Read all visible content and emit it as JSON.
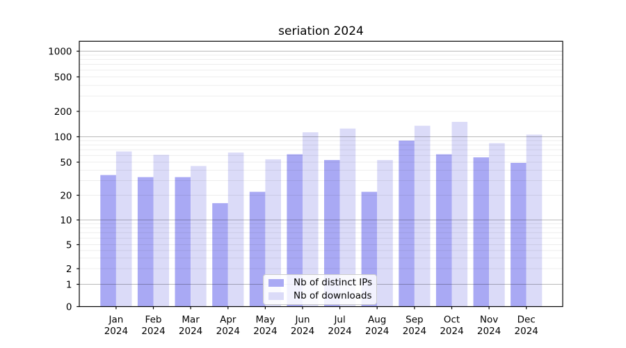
{
  "chart_data": {
    "type": "bar",
    "title": "seriation 2024",
    "categories": [
      "Jan",
      "Feb",
      "Mar",
      "Apr",
      "May",
      "Jun",
      "Jul",
      "Aug",
      "Sep",
      "Oct",
      "Nov",
      "Dec"
    ],
    "category_year": "2024",
    "series": [
      {
        "name": "Nb of distinct IPs",
        "color": "#a9a9f4",
        "values": [
          35,
          33,
          33,
          16,
          22,
          62,
          53,
          22,
          90,
          62,
          57,
          49
        ]
      },
      {
        "name": "Nb of downloads",
        "color": "#dbdbf8",
        "values": [
          67,
          61,
          45,
          65,
          54,
          113,
          125,
          53,
          135,
          150,
          84,
          106
        ]
      }
    ],
    "xlabel": "",
    "ylabel": "",
    "yscale": "symlog",
    "y_ticks": [
      0,
      1,
      2,
      5,
      10,
      20,
      50,
      100,
      200,
      500,
      1000
    ],
    "ylim": [
      0,
      1300
    ],
    "grid": true,
    "grid_position": "above-bars",
    "legend_position": "lower center"
  }
}
